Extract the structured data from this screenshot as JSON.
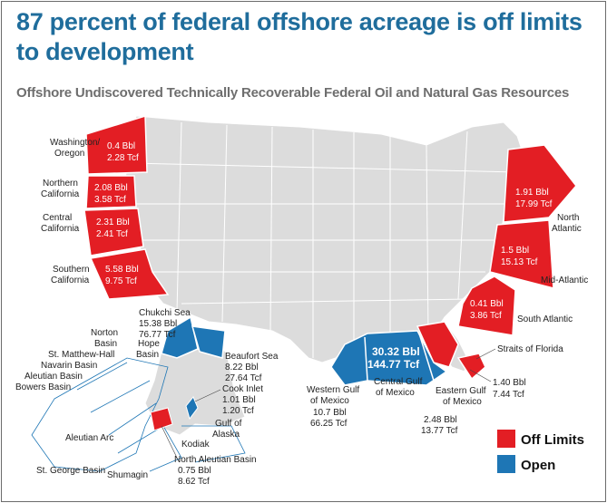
{
  "title": "87 percent of federal offshore acreage is off limits to development",
  "subtitle": "Offshore Undiscovered Technically Recoverable Federal Oil and Natural Gas Resources",
  "colors": {
    "off_limits": "#e31e24",
    "open": "#1e76b5",
    "land": "#dcdcdc",
    "title": "#1f6d9c"
  },
  "regions": {
    "washington_oregon": {
      "name1": "Washington/",
      "name2": "Oregon",
      "oil": "0.4 Bbl",
      "gas": "2.28 Tcf",
      "status": "off_limits"
    },
    "northern_california": {
      "name1": "Northern",
      "name2": "California",
      "oil": "2.08 Bbl",
      "gas": "3.58 Tcf",
      "status": "off_limits"
    },
    "central_california": {
      "name1": "Central",
      "name2": "California",
      "oil": "2.31 Bbl",
      "gas": "2.41 Tcf",
      "status": "off_limits"
    },
    "southern_california": {
      "name1": "Southern",
      "name2": "California",
      "oil": "5.58 Bbl",
      "gas": "9.75 Tcf",
      "status": "off_limits"
    },
    "north_atlantic": {
      "name1": "North",
      "name2": "Atlantic",
      "oil": "1.91 Bbl",
      "gas": "17.99 Tcf",
      "status": "off_limits"
    },
    "mid_atlantic": {
      "name": "Mid-Atlantic",
      "oil": "1.5 Bbl",
      "gas": "15.13 Tcf",
      "status": "off_limits"
    },
    "south_atlantic": {
      "name": "South Atlantic",
      "oil": "0.41 Bbl",
      "gas": "3.86 Tcf",
      "status": "off_limits"
    },
    "straits_of_florida": {
      "name": "Straits of Florida",
      "status": "off_limits"
    },
    "eastern_gulf": {
      "name1": "Eastern Gulf",
      "name2": "of Mexico",
      "oil": "2.48 Bbl",
      "gas": "13.77 Tcf",
      "status": "off_limits"
    },
    "florida_combined": {
      "oil": "1.40 Bbl",
      "gas": "7.44 Tcf"
    },
    "central_western_gulf": {
      "oil": "30.32 Bbl",
      "gas": "144.77 Tcf",
      "status": "open"
    },
    "western_gulf": {
      "name1": "Western Gulf",
      "name2": "of Mexico",
      "oil": "10.7 Bbl",
      "gas": "66.25 Tcf",
      "status": "open"
    },
    "central_gulf": {
      "name1": "Central Gulf",
      "name2": "of Mexico",
      "status": "open"
    },
    "chukchi_sea": {
      "name": "Chukchi Sea",
      "oil": "15.38 Bbl",
      "gas": "76.77 Tcf",
      "status": "open"
    },
    "beaufort_sea": {
      "name": "Beaufort Sea",
      "oil": "8.22 Bbl",
      "gas": "27.64 Tcf",
      "status": "open"
    },
    "cook_inlet": {
      "name": "Cook Inlet",
      "oil": "1.01 Bbl",
      "gas": "1.20 Tcf",
      "status": "open"
    },
    "north_aleutian_basin": {
      "name": "North Aleutian Basin",
      "oil": "0.75 Bbl",
      "gas": "8.62 Tcf",
      "status": "off_limits"
    },
    "hope_basin": {
      "name1": "Hope",
      "name2": "Basin"
    },
    "norton_basin": {
      "name1": "Norton",
      "name2": "Basin"
    },
    "st_matthew_hall": {
      "name": "St. Matthew-Hall"
    },
    "navarin_basin": {
      "name": "Navarin Basin"
    },
    "aleutian_basin": {
      "name": "Aleutian Basin"
    },
    "bowers_basin": {
      "name": "Bowers Basin"
    },
    "aleutian_arc": {
      "name": "Aleutian Arc"
    },
    "st_george_basin": {
      "name": "St. George Basin"
    },
    "shumagin": {
      "name": "Shumagin"
    },
    "kodiak": {
      "name": "Kodiak"
    },
    "gulf_of_alaska": {
      "name1": "Gulf of",
      "name2": "Alaska"
    }
  },
  "legend": [
    {
      "label": "Off Limits",
      "color": "#e31e24"
    },
    {
      "label": "Open",
      "color": "#1e76b5"
    }
  ]
}
